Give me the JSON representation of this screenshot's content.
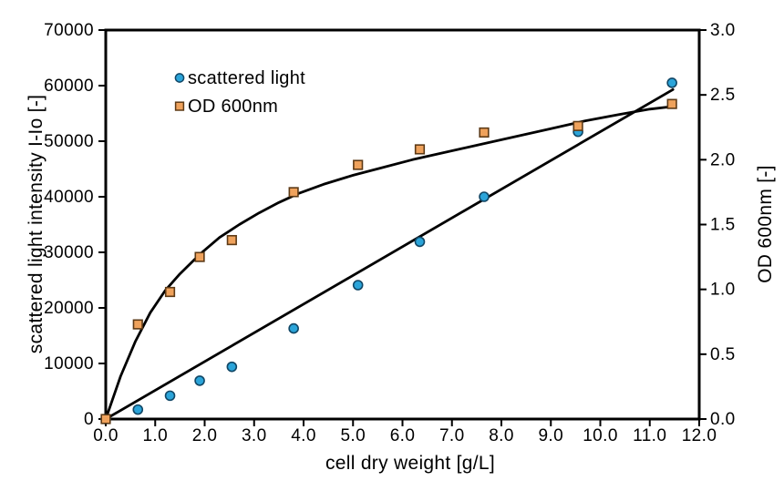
{
  "chart_data": {
    "type": "scatter",
    "title": "",
    "xlabel": "cell dry weight  [g/L]",
    "ylabel_left": "scattered light intensity  I-Io  [-]",
    "ylabel_right": "OD 600nm  [-]",
    "xlim": [
      0,
      12
    ],
    "ylim_left": [
      0,
      70000
    ],
    "ylim_right": [
      0,
      3
    ],
    "grid": false,
    "x_ticks": {
      "values": [
        0,
        1,
        2,
        3,
        4,
        5,
        6,
        7,
        8,
        9,
        10,
        11,
        12
      ],
      "labels": [
        "0.0",
        "1.0",
        "2.0",
        "3.0",
        "4.0",
        "5.0",
        "6.0",
        "7.0",
        "8.0",
        "9.0",
        "10.0",
        "11.0",
        "12.0"
      ]
    },
    "y_ticks_left": {
      "values": [
        0,
        10000,
        20000,
        30000,
        40000,
        50000,
        60000,
        70000
      ],
      "labels": [
        "0",
        "10000",
        "20000",
        "30000",
        "40000",
        "50000",
        "60000",
        "70000"
      ]
    },
    "y_ticks_right": {
      "values": [
        0,
        0.5,
        1.0,
        1.5,
        2.0,
        2.5,
        3.0
      ],
      "labels": [
        "0.0",
        "0.5",
        "1.0",
        "1.5",
        "2.0",
        "2.5",
        "3.0"
      ]
    },
    "legend": {
      "position": "inside-top-left",
      "items": [
        {
          "label": "scattered light",
          "marker": "circle"
        },
        {
          "label": "OD 600nm",
          "marker": "square"
        }
      ]
    },
    "colors": {
      "scattered_fill": "#2ba4d9",
      "scattered_stroke": "#114766",
      "od_fill": "#efa25c",
      "od_stroke": "#5d3a16",
      "fit_line": "#000000",
      "axis": "#000000"
    },
    "series": [
      {
        "name": "scattered light",
        "axis": "left",
        "marker": "circle",
        "points": [
          [
            0,
            0
          ],
          [
            0.65,
            1700
          ],
          [
            1.3,
            4200
          ],
          [
            1.9,
            6900
          ],
          [
            2.55,
            9400
          ],
          [
            3.8,
            16300
          ],
          [
            5.1,
            24100
          ],
          [
            6.35,
            31900
          ],
          [
            7.65,
            40000
          ],
          [
            9.55,
            51700
          ],
          [
            11.45,
            60500
          ]
        ]
      },
      {
        "name": "OD 600nm",
        "axis": "right",
        "marker": "square",
        "points": [
          [
            0,
            0
          ],
          [
            0.65,
            0.73
          ],
          [
            1.3,
            0.98
          ],
          [
            1.9,
            1.25
          ],
          [
            2.55,
            1.38
          ],
          [
            3.8,
            1.75
          ],
          [
            5.1,
            1.96
          ],
          [
            6.35,
            2.08
          ],
          [
            7.65,
            2.21
          ],
          [
            9.55,
            2.26
          ],
          [
            11.45,
            2.43
          ]
        ]
      }
    ],
    "fits": [
      {
        "name": "linear fit (scattered light)",
        "axis": "left",
        "points": [
          [
            0,
            0
          ],
          [
            11.47,
            59300
          ]
        ]
      },
      {
        "name": "saturation fit (OD 600nm)",
        "axis": "right",
        "points": [
          [
            0,
            0
          ],
          [
            0.3,
            0.33
          ],
          [
            0.6,
            0.6
          ],
          [
            0.9,
            0.82
          ],
          [
            1.2,
            0.99
          ],
          [
            1.5,
            1.12
          ],
          [
            1.9,
            1.27
          ],
          [
            2.3,
            1.4
          ],
          [
            2.7,
            1.5
          ],
          [
            3.1,
            1.59
          ],
          [
            3.5,
            1.67
          ],
          [
            3.9,
            1.74
          ],
          [
            4.4,
            1.81
          ],
          [
            5.0,
            1.88
          ],
          [
            5.6,
            1.94
          ],
          [
            6.2,
            2.0
          ],
          [
            6.9,
            2.06
          ],
          [
            7.6,
            2.12
          ],
          [
            8.3,
            2.18
          ],
          [
            9.0,
            2.24
          ],
          [
            9.7,
            2.3
          ],
          [
            10.4,
            2.35
          ],
          [
            11.0,
            2.39
          ],
          [
            11.45,
            2.41
          ]
        ]
      }
    ]
  }
}
